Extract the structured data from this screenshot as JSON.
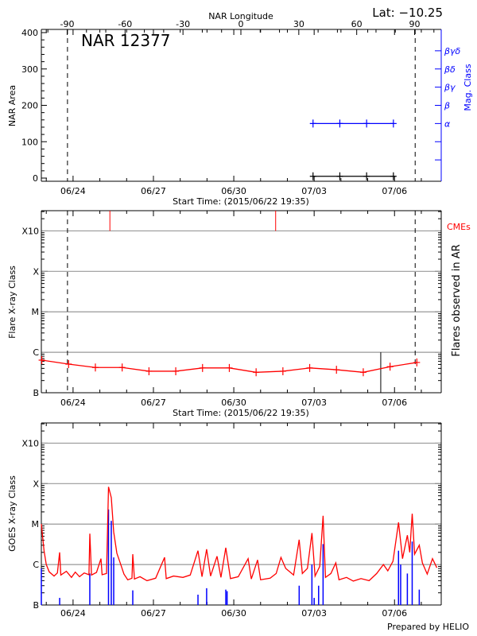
{
  "header": {
    "top_axis_label": "NAR Longitude",
    "latitude": "Lat: −10.25",
    "region_title": "NAR 12377",
    "footer": "Prepared by HELIO"
  },
  "colors": {
    "area": "#000000",
    "mag_class": "#0000ff",
    "flares": "#ff0000",
    "cme": "#ff0000",
    "goes_long": "#ff0000",
    "goes_short": "#0000ff",
    "grid": "#999999"
  },
  "chart_data": [
    {
      "type": "line",
      "start_time": "2015-06-22 19:35",
      "xlabel": "Start Time: (2015/06/22 19:35)",
      "x_tick_labels": [
        "06/24",
        "06/27",
        "06/30",
        "07/03",
        "07/06"
      ],
      "top_xlabel": "NAR Longitude",
      "top_x_ticks": [
        -90,
        -60,
        -30,
        0,
        30,
        60,
        90
      ],
      "ylabel": "NAR Area",
      "ylim": [
        0,
        400
      ],
      "y_ticks": [
        0,
        100,
        200,
        300,
        400
      ],
      "y2label": "Mag. Class",
      "y2_tick_labels": [
        "",
        "",
        "α",
        "β",
        "βγ",
        "βδ",
        "βγδ"
      ],
      "limb_crossings": {
        "longitudes": [
          -90,
          90
        ],
        "times": [
          "06/23 19:00",
          "07/06 18:30"
        ],
        "style": "dashed"
      },
      "area_series": [
        [
          "07/02 23:00",
          5
        ],
        [
          "07/03 23:00",
          5
        ],
        [
          "07/04 23:00",
          5
        ],
        [
          "07/05 23:00",
          5
        ]
      ],
      "mag_class_series": [
        [
          "07/02 23:00",
          "α"
        ],
        [
          "07/03 23:00",
          "α"
        ],
        [
          "07/04 23:00",
          "α"
        ],
        [
          "07/05 23:00",
          "α"
        ]
      ],
      "title": "NAR 12377",
      "annotation": "Lat: −10.25"
    },
    {
      "type": "line",
      "xlabel": "Start Time: (2015/06/22 19:35)",
      "x_tick_labels": [
        "06/24",
        "06/27",
        "06/30",
        "07/03",
        "07/06"
      ],
      "ylabel": "Flare X-ray Class",
      "y2label": "Flares observed in AR",
      "y_scale": "log",
      "ylim": [
        1e-07,
        0.00316
      ],
      "y_ticks": [
        {
          "value": 1e-07,
          "label": "B"
        },
        {
          "value": 1e-06,
          "label": "C"
        },
        {
          "value": 1e-05,
          "label": "M"
        },
        {
          "value": 0.0001,
          "label": "X"
        },
        {
          "value": 0.001,
          "label": "X10"
        }
      ],
      "grid": true,
      "legend": {
        "cme_label": "CMEs",
        "placement": "right"
      },
      "background_series": [
        [
          "06/22 20:00",
          6.4e-07
        ],
        [
          "06/23 20:00",
          5.1e-07
        ],
        [
          "06/24 20:00",
          4.2e-07
        ],
        [
          "06/25 20:00",
          4.2e-07
        ],
        [
          "06/26 20:00",
          3.4e-07
        ],
        [
          "06/27 20:00",
          3.4e-07
        ],
        [
          "06/28 20:00",
          4.1e-07
        ],
        [
          "06/29 20:00",
          4.1e-07
        ],
        [
          "06/30 20:00",
          3.2e-07
        ],
        [
          "07/01 20:00",
          3.4e-07
        ],
        [
          "07/02 20:00",
          4.1e-07
        ],
        [
          "07/03 20:00",
          3.7e-07
        ],
        [
          "07/04 20:00",
          3.2e-07
        ],
        [
          "07/05 20:00",
          4.4e-07
        ],
        [
          "07/06 20:00",
          5.6e-07
        ]
      ],
      "cmes": [
        "06/25 09:00",
        "07/01 13:30"
      ],
      "flares": [
        [
          "07/05 11:40",
          1e-06
        ]
      ],
      "limb_crossings": [
        "06/23 19:00",
        "07/06 18:30"
      ]
    },
    {
      "type": "line",
      "xlabel": "",
      "x_tick_labels": [
        "06/24",
        "06/27",
        "06/30",
        "07/03",
        "07/06"
      ],
      "ylabel": "GOES X-ray Class",
      "y_scale": "log",
      "ylim": [
        1e-07,
        0.00316
      ],
      "y_ticks": [
        {
          "value": 1e-07,
          "label": "B"
        },
        {
          "value": 1e-06,
          "label": "C"
        },
        {
          "value": 1e-05,
          "label": "M"
        },
        {
          "value": 0.0001,
          "label": "X"
        },
        {
          "value": 0.001,
          "label": "X10"
        }
      ],
      "grid": true,
      "series": [
        {
          "color": "#ff0000",
          "points": [
            [
              "06/22 19:35",
              1e-05
            ],
            [
              "06/22 22:00",
              2.2e-06
            ],
            [
              "06/23 00:00",
              1e-06
            ],
            [
              "06/23 02:40",
              6.6e-07
            ],
            [
              "06/23 07:00",
              5.2e-07
            ],
            [
              "06/23 10:00",
              6.2e-07
            ],
            [
              "06/23 12:00",
              2e-06
            ],
            [
              "06/23 13:00",
              5.5e-07
            ],
            [
              "06/23 18:00",
              6.8e-07
            ],
            [
              "06/23 22:35",
              4.8e-07
            ],
            [
              "06/24 02:00",
              6.5e-07
            ],
            [
              "06/24 05:45",
              5e-07
            ],
            [
              "06/24 10:00",
              6.2e-07
            ],
            [
              "06/24 14:15",
              5.6e-07
            ],
            [
              "06/24 15:00",
              5.8e-06
            ],
            [
              "06/24 16:30",
              5.5e-07
            ],
            [
              "06/24 21:00",
              6.4e-07
            ],
            [
              "06/25 01:00",
              1.4e-06
            ],
            [
              "06/25 02:00",
              5.6e-07
            ],
            [
              "06/25 06:00",
              6e-07
            ],
            [
              "06/25 07:45",
              8.3e-05
            ],
            [
              "06/25 10:15",
              4.5e-05
            ],
            [
              "06/25 12:25",
              6.4e-06
            ],
            [
              "06/25 15:15",
              1.9e-06
            ],
            [
              "06/25 18:45",
              1e-06
            ],
            [
              "06/25 21:35",
              5.8e-07
            ],
            [
              "06/26 01:00",
              4.2e-07
            ],
            [
              "06/26 04:45",
              4.6e-07
            ],
            [
              "06/26 05:30",
              1.8e-06
            ],
            [
              "06/26 07:00",
              4.4e-07
            ],
            [
              "06/26 12:00",
              5e-07
            ],
            [
              "06/26 18:15",
              4e-07
            ],
            [
              "06/27 02:00",
              4.6e-07
            ],
            [
              "06/27 10:00",
              1.5e-06
            ],
            [
              "06/27 11:30",
              4.5e-07
            ],
            [
              "06/27 18:00",
              5.2e-07
            ],
            [
              "06/28 02:25",
              4.8e-07
            ],
            [
              "06/28 09:00",
              5.5e-07
            ],
            [
              "06/28 15:55",
              2.2e-06
            ],
            [
              "06/28 19:30",
              5e-07
            ],
            [
              "06/28 23:40",
              2.4e-06
            ],
            [
              "06/29 03:15",
              5.2e-07
            ],
            [
              "06/29 09:00",
              1.6e-06
            ],
            [
              "06/29 12:30",
              4.8e-07
            ],
            [
              "06/29 16:50",
              2.6e-06
            ],
            [
              "06/29 21:00",
              4.5e-07
            ],
            [
              "06/30 04:00",
              5e-07
            ],
            [
              "06/30 12:50",
              1.4e-06
            ],
            [
              "06/30 15:40",
              4.4e-07
            ],
            [
              "06/30 21:20",
              1.3e-06
            ],
            [
              "07/01 00:00",
              4.2e-07
            ],
            [
              "07/01 08:35",
              4.6e-07
            ],
            [
              "07/01 14:00",
              6e-07
            ],
            [
              "07/01 18:15",
              1.5e-06
            ],
            [
              "07/01 22:30",
              8e-07
            ],
            [
              "07/02 05:35",
              5.5e-07
            ],
            [
              "07/02 10:35",
              4.1e-06
            ],
            [
              "07/02 13:25",
              6e-07
            ],
            [
              "07/02 18:00",
              8e-07
            ],
            [
              "07/02 22:00",
              6e-06
            ],
            [
              "07/03 00:50",
              5.2e-07
            ],
            [
              "07/03 05:00",
              9e-07
            ],
            [
              "07/03 08:00",
              1.6e-05
            ],
            [
              "07/03 10:10",
              4.8e-07
            ],
            [
              "07/03 15:00",
              6e-07
            ],
            [
              "07/03 19:25",
              1.1e-06
            ],
            [
              "07/03 22:15",
              4.2e-07
            ],
            [
              "07/04 05:00",
              4.8e-07
            ],
            [
              "07/04 11:05",
              3.9e-07
            ],
            [
              "07/04 18:00",
              4.5e-07
            ],
            [
              "07/05 01:15",
              4e-07
            ],
            [
              "07/05 08:00",
              6e-07
            ],
            [
              "07/05 14:05",
              1e-06
            ],
            [
              "07/05 18:00",
              7e-07
            ],
            [
              "07/05 22:35",
              1.2e-06
            ],
            [
              "07/06 03:35",
              1.1e-05
            ],
            [
              "07/06 07:10",
              1.4e-06
            ],
            [
              "07/06 11:30",
              5.3e-06
            ],
            [
              "07/06 13:40",
              2e-06
            ],
            [
              "07/06 15:50",
              1.8e-05
            ],
            [
              "07/06 18:00",
              1.8e-06
            ],
            [
              "07/06 22:10",
              3e-06
            ],
            [
              "07/07 01:00",
              1.1e-06
            ],
            [
              "07/07 05:20",
              5.8e-07
            ],
            [
              "07/07 10:00",
              1.4e-06
            ],
            [
              "07/07 13:55",
              8.3e-07
            ]
          ]
        },
        {
          "color": "#0000ff",
          "points": [
            [
              "06/22 19:35",
              8e-07
            ],
            [
              "06/23 12:00",
              1.5e-07
            ],
            [
              "06/24 15:00",
              6e-07
            ],
            [
              "06/25 07:45",
              2.3e-05
            ],
            [
              "06/25 10:15",
              1.2e-05
            ],
            [
              "06/25 12:25",
              1.5e-06
            ],
            [
              "06/26 05:30",
              2.3e-07
            ],
            [
              "06/28 15:55",
              1.8e-07
            ],
            [
              "06/28 23:40",
              2.6e-07
            ],
            [
              "06/29 16:50",
              2.4e-07
            ],
            [
              "06/29 18:00",
              2.2e-07
            ],
            [
              "07/02 10:35",
              3e-07
            ],
            [
              "07/02 22:00",
              1e-06
            ],
            [
              "07/03 00:00",
              1.5e-07
            ],
            [
              "07/03 04:00",
              3e-07
            ],
            [
              "07/03 08:00",
              3.2e-06
            ],
            [
              "07/06 03:35",
              2.2e-06
            ],
            [
              "07/06 05:30",
              1e-06
            ],
            [
              "07/06 11:30",
              6e-07
            ],
            [
              "07/06 15:50",
              3.7e-06
            ],
            [
              "07/06 22:10",
              2.4e-07
            ]
          ]
        }
      ]
    }
  ]
}
